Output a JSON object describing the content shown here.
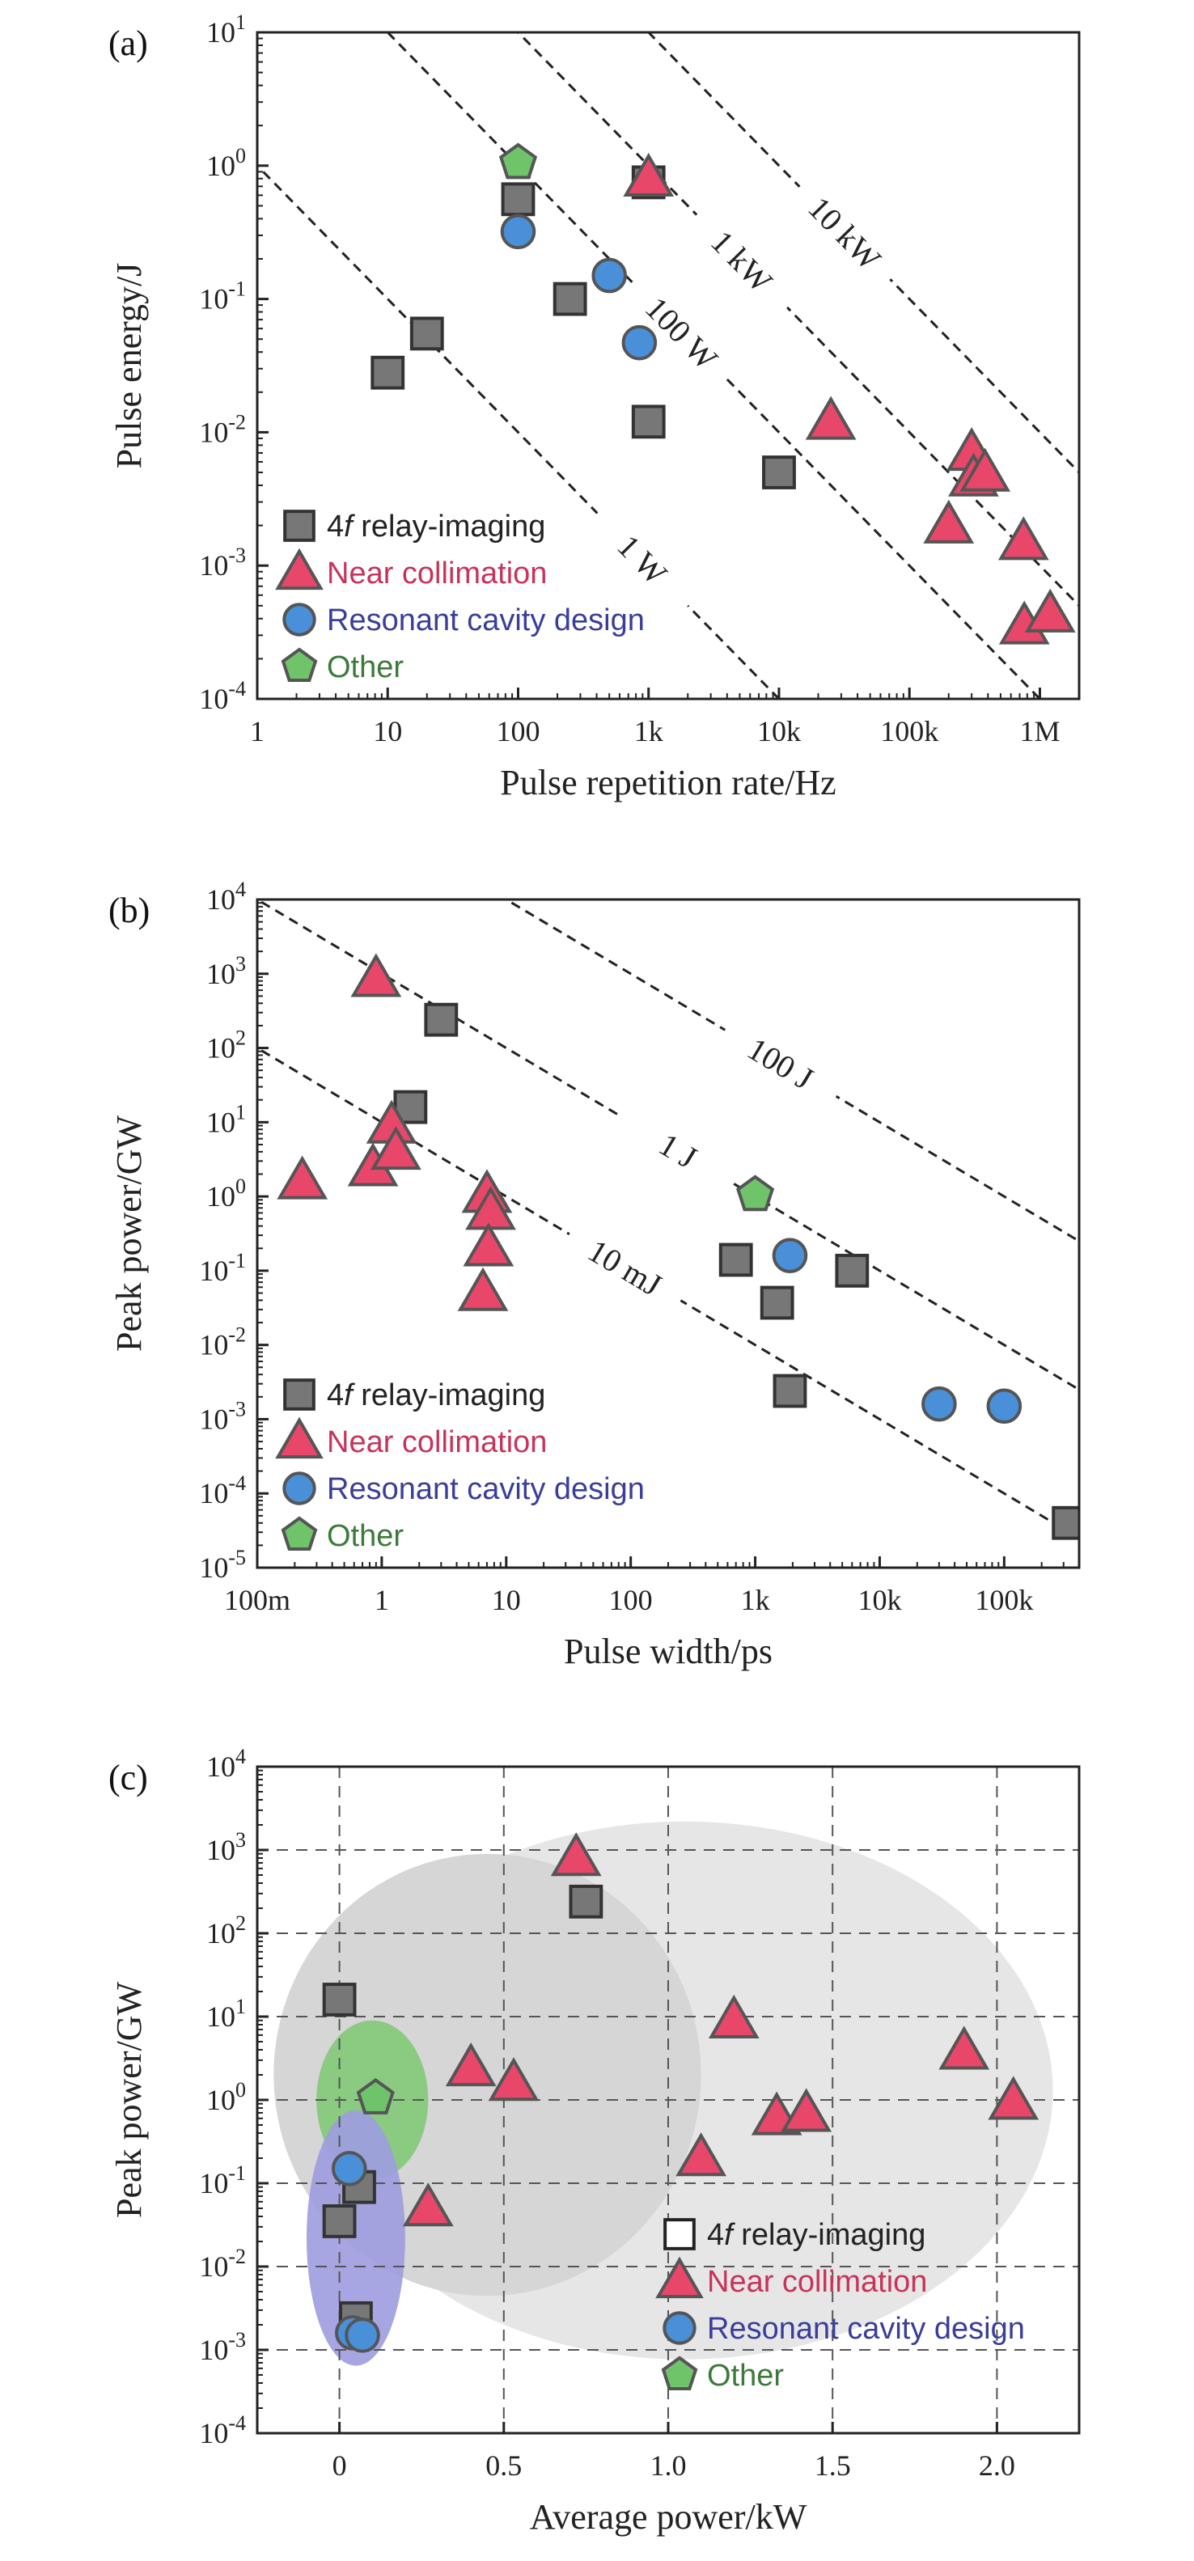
{
  "colors": {
    "square": "#777777",
    "triangle": "#e8476a",
    "circle": "#4a90d9",
    "pentagon": "#6fc46a",
    "legend_near": "#c8335a",
    "legend_reso": "#3a3e9a",
    "legend_other": "#3c7a3a"
  },
  "legend": {
    "relay_prefix": "4",
    "relay_italic": "f",
    "relay_suffix": " relay-imaging",
    "near": "Near collimation",
    "resonant": "Resonant cavity design",
    "other": "Other"
  },
  "chart_data": [
    {
      "label": "(a)",
      "type": "scatter",
      "xscale": "log",
      "yscale": "log",
      "xlabel": "Pulse repetition rate/Hz",
      "ylabel": "Pulse energy/J",
      "xlim": [
        1,
        2000000
      ],
      "ylim": [
        0.0001,
        10
      ],
      "xticks": [
        1,
        10,
        100,
        1000,
        10000,
        100000,
        1000000
      ],
      "xticklabels": [
        "1",
        "10",
        "100",
        "1k",
        "10k",
        "100k",
        "1M"
      ],
      "yticks": [
        0.0001,
        0.001,
        0.01,
        0.1,
        1,
        10
      ],
      "ytick_base": "10",
      "ytick_exps": [
        "-4",
        "-3",
        "-2",
        "-1",
        "0",
        "1"
      ],
      "iso_lines": [
        {
          "label": "1 W",
          "value": 1,
          "label_x": 900
        },
        {
          "label": "100 W",
          "value": 100,
          "label_x": 1800
        },
        {
          "label": "1 kW",
          "value": 1000,
          "label_x": 5200
        },
        {
          "label": "10 kW",
          "value": 10000,
          "label_x": 32000
        }
      ],
      "legend_position": "lower-left",
      "series": [
        {
          "name": "4f relay-imaging",
          "marker": "square",
          "points": [
            [
              10,
              0.028
            ],
            [
              20,
              0.055
            ],
            [
              100,
              0.56
            ],
            [
              250,
              0.1
            ],
            [
              1000,
              0.75
            ],
            [
              1000,
              0.012
            ],
            [
              10000,
              0.005
            ]
          ]
        },
        {
          "name": "Near collimation",
          "marker": "triangle",
          "points": [
            [
              1000,
              0.8
            ],
            [
              25000,
              0.012
            ],
            [
              200000,
              0.002
            ],
            [
              300000,
              0.007
            ],
            [
              310000,
              0.0045
            ],
            [
              380000,
              0.0049
            ],
            [
              750000,
              0.0015
            ],
            [
              760000,
              0.00035
            ],
            [
              1200000,
              0.00043
            ]
          ]
        },
        {
          "name": "Resonant cavity design",
          "marker": "circle",
          "points": [
            [
              100,
              0.32
            ],
            [
              500,
              0.15
            ],
            [
              850,
              0.047
            ]
          ]
        },
        {
          "name": "Other",
          "marker": "pentagon",
          "points": [
            [
              100,
              1.05
            ]
          ]
        }
      ]
    },
    {
      "label": "(b)",
      "type": "scatter",
      "xscale": "log",
      "yscale": "log",
      "xlabel": "Pulse width/ps",
      "ylabel": "Peak power/GW",
      "xlim": [
        0.1,
        400000
      ],
      "ylim": [
        1e-05,
        10000
      ],
      "xticks": [
        0.1,
        1,
        10,
        100,
        1000,
        10000,
        100000
      ],
      "xticklabels": [
        "100m",
        "1",
        "10",
        "100",
        "1k",
        "10k",
        "100k"
      ],
      "yticks": [
        1e-05,
        0.0001,
        0.001,
        0.01,
        0.1,
        1,
        10,
        100,
        1000,
        10000
      ],
      "ytick_base": "10",
      "ytick_exps": [
        "-5",
        "-4",
        "-3",
        "-2",
        "-1",
        "0",
        "1",
        "2",
        "3",
        "4"
      ],
      "iso_lines": [
        {
          "label": "10 mJ",
          "value": 0.01,
          "label_x": 90
        },
        {
          "label": "1 J",
          "value": 1,
          "label_x": 240
        },
        {
          "label": "100 J",
          "value": 100,
          "label_x": 1600
        }
      ],
      "legend_position": "lower-left",
      "series": [
        {
          "name": "4f relay-imaging",
          "marker": "square",
          "points": [
            [
              1.7,
              16
            ],
            [
              3,
              240
            ],
            [
              700,
              0.14
            ],
            [
              1500,
              0.037
            ],
            [
              1900,
              0.0024
            ],
            [
              6000,
              0.1
            ],
            [
              330000,
              4e-05
            ]
          ]
        },
        {
          "name": "Near collimation",
          "marker": "triangle",
          "points": [
            [
              0.23,
              1.6
            ],
            [
              0.85,
              2.4
            ],
            [
              0.9,
              850
            ],
            [
              1.2,
              9
            ],
            [
              1.3,
              4
            ],
            [
              7,
              1.05
            ],
            [
              7.5,
              0.62
            ],
            [
              7.2,
              0.2
            ],
            [
              6.5,
              0.05
            ]
          ]
        },
        {
          "name": "Resonant cavity design",
          "marker": "circle",
          "points": [
            [
              1900,
              0.16
            ],
            [
              30000,
              0.0016
            ],
            [
              100000,
              0.0015
            ]
          ]
        },
        {
          "name": "Other",
          "marker": "pentagon",
          "points": [
            [
              1000,
              1.05
            ]
          ]
        }
      ]
    },
    {
      "label": "(c)",
      "type": "scatter",
      "xscale": "linear",
      "yscale": "log",
      "xlabel": "Average power/kW",
      "ylabel": "Peak power/GW",
      "xlim": [
        -0.25,
        2.25
      ],
      "ylim": [
        0.0001,
        10000
      ],
      "xticks": [
        0,
        0.5,
        1.0,
        1.5,
        2.0
      ],
      "xticklabels": [
        "0",
        "0.5",
        "1.0",
        "1.5",
        "2.0"
      ],
      "yticks": [
        0.0001,
        0.001,
        0.01,
        0.1,
        1,
        10,
        100,
        1000,
        10000
      ],
      "ytick_base": "10",
      "ytick_exps": [
        "-4",
        "-3",
        "-2",
        "-1",
        "0",
        "1",
        "2",
        "3",
        "4"
      ],
      "grid": true,
      "legend_position": "lower-right",
      "series": [
        {
          "name": "4f relay-imaging",
          "marker": "square",
          "points": [
            [
              0,
              16
            ],
            [
              0.75,
              240
            ],
            [
              0.06,
              0.09
            ],
            [
              0,
              0.035
            ],
            [
              0.05,
              0.0024
            ]
          ]
        },
        {
          "name": "Near collimation",
          "marker": "triangle",
          "points": [
            [
              0.72,
              800
            ],
            [
              1.2,
              9
            ],
            [
              1.9,
              3.8
            ],
            [
              2.05,
              0.95
            ],
            [
              0.4,
              2.4
            ],
            [
              0.53,
              1.6
            ],
            [
              1.33,
              0.62
            ],
            [
              1.42,
              0.68
            ],
            [
              1.1,
              0.2
            ],
            [
              0.27,
              0.05
            ]
          ]
        },
        {
          "name": "Resonant cavity design",
          "marker": "circle",
          "points": [
            [
              0.03,
              0.15
            ],
            [
              0.04,
              0.0016
            ],
            [
              0.07,
              0.0015
            ]
          ]
        },
        {
          "name": "Other",
          "marker": "pentagon",
          "points": [
            [
              0.11,
              1.05
            ]
          ]
        }
      ]
    }
  ]
}
